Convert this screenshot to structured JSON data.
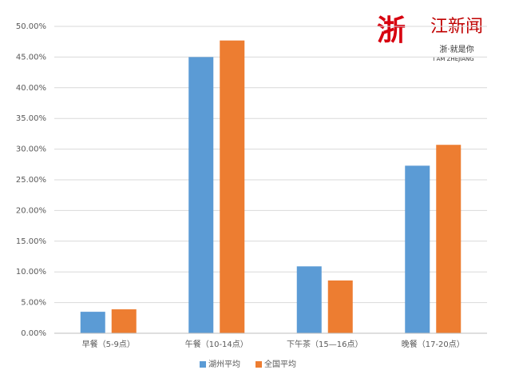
{
  "chart_data": {
    "type": "bar",
    "categories": [
      "早餐（5-9点）",
      "午餐（10-14点）",
      "下午茶（15—16点）",
      "晚餐（17-20点）"
    ],
    "series": [
      {
        "name": "湖州平均",
        "color": "#5b9bd5",
        "values": [
          3.5,
          45.0,
          10.9,
          27.3
        ]
      },
      {
        "name": "全国平均",
        "color": "#ed7d31",
        "values": [
          3.9,
          47.7,
          8.6,
          30.7
        ]
      }
    ],
    "ylim": [
      0,
      50
    ],
    "yticks": [
      {
        "value": 0,
        "label": "0.00%"
      },
      {
        "value": 5,
        "label": "5.00%"
      },
      {
        "value": 10,
        "label": "10.00%"
      },
      {
        "value": 15,
        "label": "15.00%"
      },
      {
        "value": 20,
        "label": "20.00%"
      },
      {
        "value": 25,
        "label": "25.00%"
      },
      {
        "value": 30,
        "label": "30.00%"
      },
      {
        "value": 35,
        "label": "35.00%"
      },
      {
        "value": 40,
        "label": "40.00%"
      },
      {
        "value": 45,
        "label": "45.00%"
      },
      {
        "value": 50,
        "label": "50.00%"
      }
    ],
    "grid": true,
    "legend": "bottom"
  },
  "logo": {
    "mark": "浙",
    "name": "江新闻",
    "slogan": "浙·就是你",
    "tagline": "I AM ZHEJIANG"
  }
}
